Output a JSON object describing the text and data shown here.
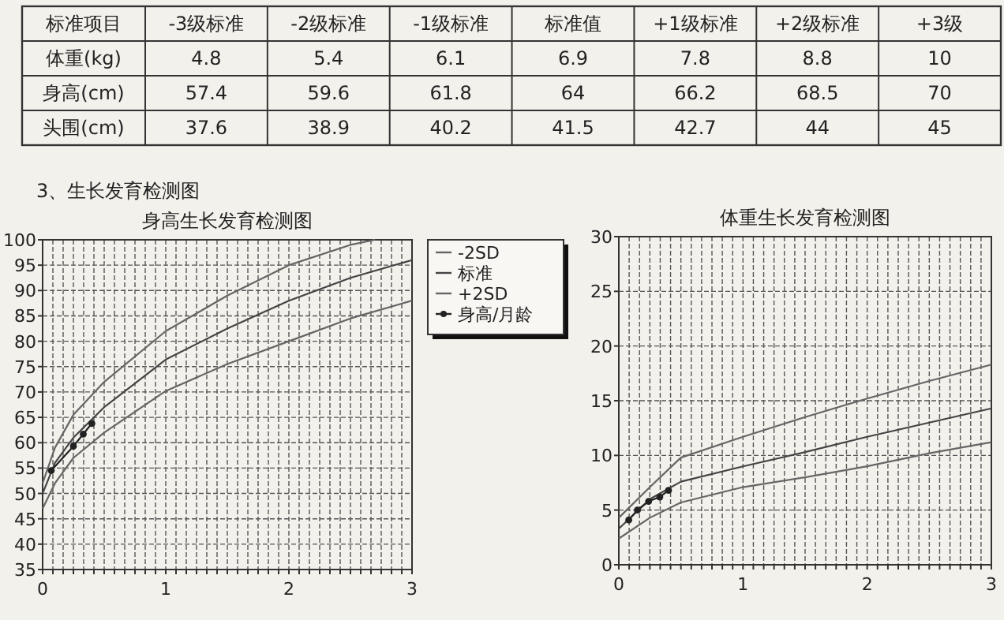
{
  "chart_data": [
    {
      "type": "heatmap",
      "annotations": [
        "标准项目"
      ],
      "categories": [
        "-3级标准",
        "-2级标准",
        "-1级标准",
        "标准值",
        "+1级标准",
        "+2级标准",
        "+3级"
      ],
      "y_categories": [
        "体重(kg)",
        "身高(cm)",
        "头围(cm)"
      ],
      "cells": [
        [
          4.8,
          5.4,
          6.1,
          6.9,
          7.8,
          8.8,
          10
        ],
        [
          57.4,
          59.6,
          61.8,
          64,
          66.2,
          68.5,
          70
        ],
        [
          37.6,
          38.9,
          40.2,
          41.5,
          42.7,
          44,
          45
        ]
      ],
      "data_labels": true
    },
    {
      "type": "line",
      "title": "身高生长发育检测图",
      "annotations": [
        "3、生长发育检测图"
      ],
      "xlim": [
        0,
        3
      ],
      "ylim": [
        35,
        100
      ],
      "xticks": [
        0,
        {
          "value": 0.0833,
          "label": null
        },
        {
          "value": 0.1667,
          "label": null
        },
        {
          "value": 0.25,
          "label": null
        },
        {
          "value": 0.3333,
          "label": null
        },
        {
          "value": 0.4167,
          "label": null
        },
        {
          "value": 0.5,
          "label": null
        },
        {
          "value": 0.5833,
          "label": null
        },
        {
          "value": 0.6667,
          "label": null
        },
        {
          "value": 0.75,
          "label": null
        },
        {
          "value": 0.8333,
          "label": null
        },
        {
          "value": 0.9167,
          "label": null
        },
        1,
        {
          "value": 1.0833,
          "label": null
        },
        {
          "value": 1.1667,
          "label": null
        },
        {
          "value": 1.25,
          "label": null
        },
        {
          "value": 1.3333,
          "label": null
        },
        {
          "value": 1.4167,
          "label": null
        },
        {
          "value": 1.5,
          "label": null
        },
        {
          "value": 1.5833,
          "label": null
        },
        {
          "value": 1.6667,
          "label": null
        },
        {
          "value": 1.75,
          "label": null
        },
        {
          "value": 1.8333,
          "label": null
        },
        {
          "value": 1.9167,
          "label": null
        },
        2,
        {
          "value": 2.0833,
          "label": null
        },
        {
          "value": 2.1667,
          "label": null
        },
        {
          "value": 2.25,
          "label": null
        },
        {
          "value": 2.3333,
          "label": null
        },
        {
          "value": 2.4167,
          "label": null
        },
        {
          "value": 2.5,
          "label": null
        },
        {
          "value": 2.5833,
          "label": null
        },
        {
          "value": 2.6667,
          "label": null
        },
        {
          "value": 2.75,
          "label": null
        },
        {
          "value": 2.8333,
          "label": null
        },
        {
          "value": 2.9167,
          "label": null
        },
        3
      ],
      "yticks": [
        35,
        40,
        45,
        50,
        55,
        60,
        65,
        70,
        75,
        80,
        85,
        90,
        95,
        100
      ],
      "grid": true,
      "legend": "right",
      "line_style": "solid",
      "series": [
        {
          "name": "-2SD",
          "color": "#666666",
          "x": [
            0,
            0.1,
            0.25,
            0.5,
            1,
            1.5,
            2,
            2.5,
            3
          ],
          "values": [
            47,
            52,
            57,
            62,
            70.2,
            75.5,
            80,
            84.5,
            88
          ]
        },
        {
          "name": "标准",
          "color": "#444444",
          "x": [
            0,
            0.1,
            0.25,
            0.5,
            1,
            1.5,
            2,
            2.5,
            3
          ],
          "values": [
            50,
            56,
            61,
            67,
            76.4,
            82.5,
            88,
            92.5,
            96
          ]
        },
        {
          "name": "+2SD",
          "color": "#666666",
          "x": [
            0,
            0.1,
            0.25,
            0.5,
            1,
            1.5,
            2,
            2.5,
            2.7
          ],
          "values": [
            52,
            59,
            65.5,
            72,
            82,
            89,
            95,
            99,
            100
          ]
        },
        {
          "name": "身高/月龄",
          "color": "#222222",
          "marker": "circle",
          "x": [
            0.07,
            0.25,
            0.33,
            0.4
          ],
          "values": [
            54.5,
            59.3,
            61.7,
            63.8
          ]
        }
      ]
    },
    {
      "type": "line",
      "title": "体重生长发育检测图",
      "xlim": [
        0,
        3
      ],
      "ylim": [
        0,
        30
      ],
      "xticks": [
        0,
        {
          "value": 0.0833,
          "label": null
        },
        {
          "value": 0.1667,
          "label": null
        },
        {
          "value": 0.25,
          "label": null
        },
        {
          "value": 0.3333,
          "label": null
        },
        {
          "value": 0.4167,
          "label": null
        },
        {
          "value": 0.5,
          "label": null
        },
        {
          "value": 0.5833,
          "label": null
        },
        {
          "value": 0.6667,
          "label": null
        },
        {
          "value": 0.75,
          "label": null
        },
        {
          "value": 0.8333,
          "label": null
        },
        {
          "value": 0.9167,
          "label": null
        },
        1,
        {
          "value": 1.0833,
          "label": null
        },
        {
          "value": 1.1667,
          "label": null
        },
        {
          "value": 1.25,
          "label": null
        },
        {
          "value": 1.3333,
          "label": null
        },
        {
          "value": 1.4167,
          "label": null
        },
        {
          "value": 1.5,
          "label": null
        },
        {
          "value": 1.5833,
          "label": null
        },
        {
          "value": 1.6667,
          "label": null
        },
        {
          "value": 1.75,
          "label": null
        },
        {
          "value": 1.8333,
          "label": null
        },
        {
          "value": 1.9167,
          "label": null
        },
        2,
        {
          "value": 2.0833,
          "label": null
        },
        {
          "value": 2.1667,
          "label": null
        },
        {
          "value": 2.25,
          "label": null
        },
        {
          "value": 2.3333,
          "label": null
        },
        {
          "value": 2.4167,
          "label": null
        },
        {
          "value": 2.5,
          "label": null
        },
        {
          "value": 2.5833,
          "label": null
        },
        {
          "value": 2.6667,
          "label": null
        },
        {
          "value": 2.75,
          "label": null
        },
        {
          "value": 2.8333,
          "label": null
        },
        {
          "value": 2.9167,
          "label": null
        },
        3
      ],
      "yticks": [
        0,
        5,
        10,
        15,
        20,
        25,
        30
      ],
      "grid": true,
      "line_style": "solid",
      "series": [
        {
          "color": "#666666",
          "x": [
            0,
            0.25,
            0.5,
            1,
            1.5,
            2,
            2.5,
            3
          ],
          "values": [
            2.4,
            4.3,
            5.7,
            7.1,
            8,
            9,
            10.2,
            11.2
          ]
        },
        {
          "color": "#444444",
          "x": [
            0,
            0.25,
            0.5,
            1,
            1.5,
            2,
            2.5,
            3
          ],
          "values": [
            3.3,
            6,
            7.6,
            9,
            10.3,
            11.7,
            13,
            14.3
          ]
        },
        {
          "color": "#666666",
          "x": [
            0,
            0.25,
            0.5,
            1,
            1.5,
            2,
            2.5,
            3
          ],
          "values": [
            4.3,
            7.1,
            9.8,
            11.7,
            13.5,
            15.2,
            16.8,
            18.3
          ]
        },
        {
          "color": "#222222",
          "marker": "circle",
          "x": [
            0.08,
            0.15,
            0.24,
            0.33,
            0.4
          ],
          "values": [
            4.1,
            5,
            5.8,
            6.2,
            6.8
          ]
        }
      ]
    }
  ]
}
